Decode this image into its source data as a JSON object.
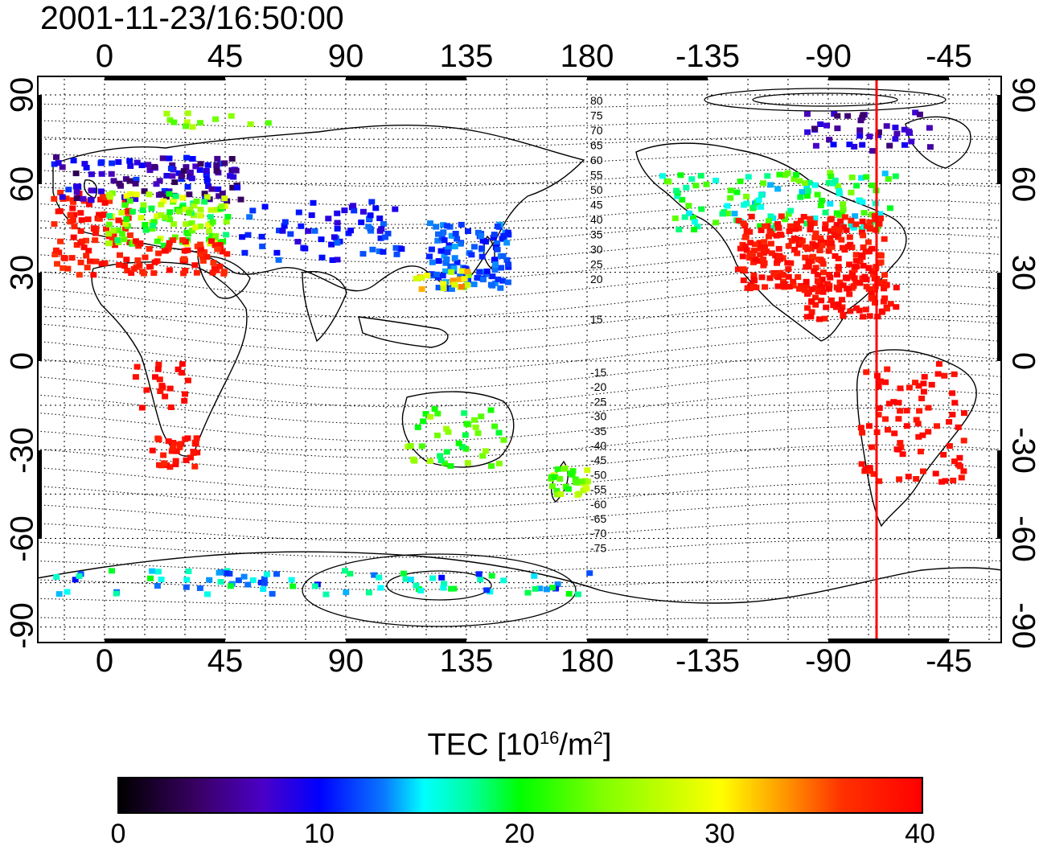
{
  "timestamp": "2001-11-23/16:50:00",
  "map": {
    "top_lon_ticks": [
      "0",
      "45",
      "90",
      "135",
      "180",
      "-135",
      "-90",
      "-45"
    ],
    "bottom_lon_ticks": [
      "0",
      "45",
      "90",
      "135",
      "180",
      "-135",
      "-90",
      "-45"
    ],
    "left_lat_ticks": [
      "90",
      "60",
      "30",
      "0",
      "-30",
      "-60",
      "-90"
    ],
    "right_lat_ticks": [
      "90",
      "60",
      "30",
      "0",
      "-30",
      "-60",
      "-90"
    ],
    "contour_labels_north": [
      "80",
      "75",
      "70",
      "65",
      "60",
      "55",
      "50",
      "45",
      "40",
      "35",
      "30",
      "25",
      "20",
      "15"
    ],
    "contour_labels_south": [
      "-15",
      "-20",
      "-25",
      "-30",
      "-35",
      "-40",
      "-45",
      "-50",
      "-55",
      "-60",
      "-65",
      "-70",
      "-75"
    ],
    "marker_line": {
      "lon": -72,
      "color": "#ff0000"
    }
  },
  "colorbar": {
    "title_main": "TEC  [10",
    "title_exp": "16",
    "title_unit": "/m",
    "title_exp2": "2",
    "title_close": "]",
    "ticks": [
      "0",
      "10",
      "20",
      "30",
      "40"
    ],
    "range": [
      0,
      40
    ]
  }
}
